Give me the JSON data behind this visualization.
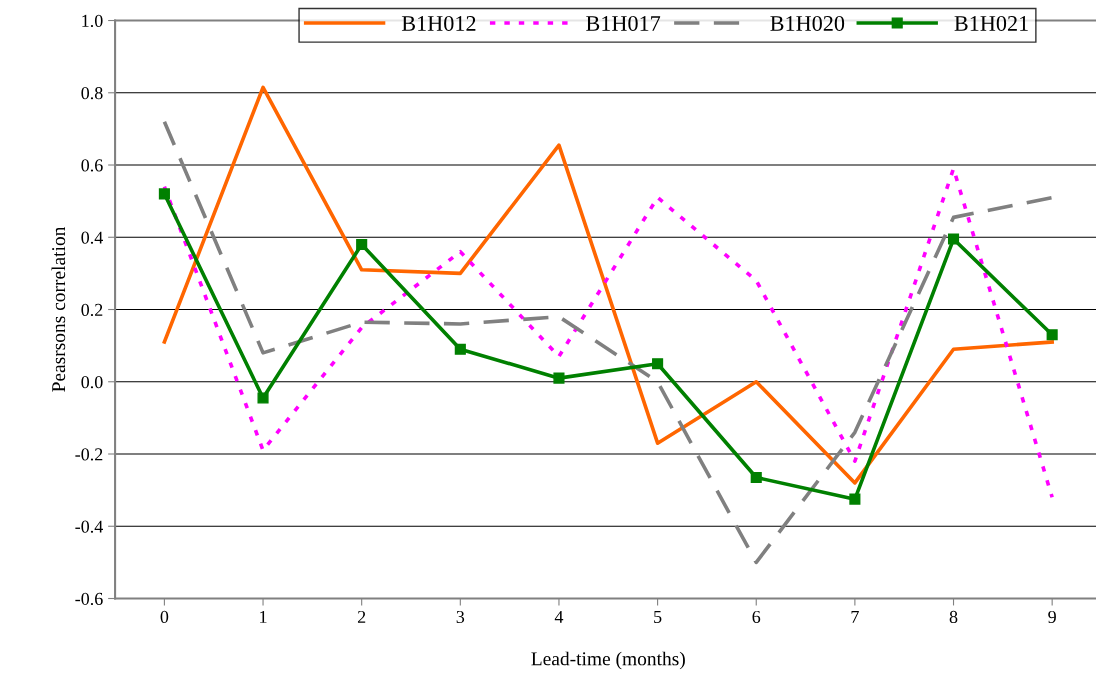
{
  "chart_data": {
    "type": "line",
    "xlabel": "Lead-time (months)",
    "ylabel": "Peasrsons correlation",
    "categories": [
      "0",
      "1",
      "2",
      "3",
      "4",
      "5",
      "6",
      "7",
      "8",
      "9"
    ],
    "series": [
      {
        "name": "B1H012",
        "color": "#ff6600",
        "line_style": "solid",
        "marker": "none",
        "values": [
          0.11,
          0.815,
          0.31,
          0.3,
          0.655,
          -0.17,
          0.0,
          -0.28,
          0.09,
          0.11
        ]
      },
      {
        "name": "B1H017",
        "color": "#ff00ff",
        "line_style": "dotted",
        "marker": "none",
        "values": [
          0.54,
          -0.19,
          0.15,
          0.36,
          0.07,
          0.51,
          0.28,
          -0.22,
          0.59,
          -0.32
        ]
      },
      {
        "name": "B1H020",
        "color": "#808080",
        "line_style": "dashed",
        "marker": "none",
        "values": [
          0.72,
          0.08,
          0.165,
          0.16,
          0.18,
          0.0,
          -0.5,
          -0.14,
          0.455,
          0.51
        ]
      },
      {
        "name": "B1H021",
        "color": "#008000",
        "line_style": "solid",
        "marker": "square",
        "values": [
          0.52,
          -0.045,
          0.38,
          0.09,
          0.01,
          0.05,
          -0.265,
          -0.325,
          0.395,
          0.13
        ]
      }
    ],
    "ylim": [
      -0.6,
      1.0
    ],
    "yticks": [
      {
        "value": -0.6,
        "label": "-0.6"
      },
      {
        "value": -0.4,
        "label": "-0.4"
      },
      {
        "value": -0.2,
        "label": "-0.2"
      },
      {
        "value": 0,
        "label": "0.0"
      },
      {
        "value": 0.2,
        "label": "0.2"
      },
      {
        "value": 0.4,
        "label": "0.4"
      },
      {
        "value": 0.6,
        "label": "0.6"
      },
      {
        "value": 0.8,
        "label": "0.8"
      },
      {
        "value": 1.0,
        "label": "1.0"
      }
    ],
    "grid": "y",
    "legend": "top"
  }
}
